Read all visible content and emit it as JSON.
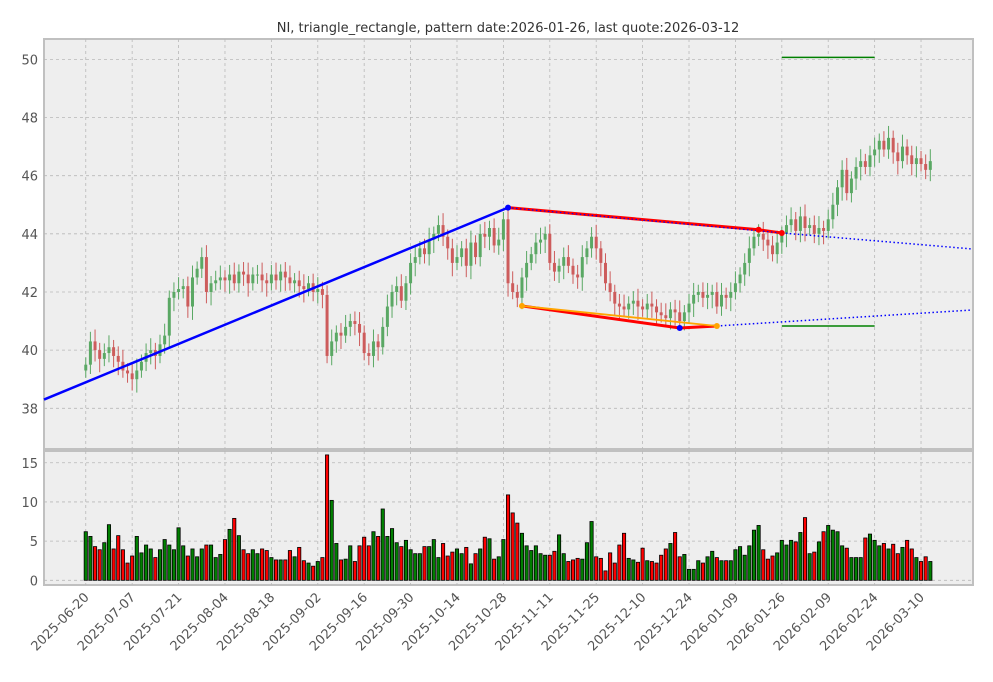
{
  "chart_data": {
    "type": "candlestick",
    "title": "NI, triangle_rectangle, pattern date:2026-01-26, last quote:2026-03-12",
    "xlabel": "",
    "ylabel": "",
    "price_ylim": [
      36.6,
      50.7
    ],
    "volume_ylim": [
      -0.6,
      16.5
    ],
    "price_yticks": [
      38,
      40,
      42,
      44,
      46,
      48,
      50
    ],
    "volume_yticks": [
      0,
      5,
      10,
      15
    ],
    "xtick_labels": [
      "2025-06-20",
      "2025-07-07",
      "2025-07-21",
      "2025-08-04",
      "2025-08-18",
      "2025-09-02",
      "2025-09-16",
      "2025-09-30",
      "2025-10-14",
      "2025-10-28",
      "2025-11-11",
      "2025-11-25",
      "2025-12-10",
      "2025-12-24",
      "2026-01-09",
      "2026-01-26",
      "2026-02-09",
      "2026-02-24",
      "2026-03-10"
    ],
    "xtick_every_bars": 10,
    "grid": true,
    "close": [
      39.5,
      40.3,
      40.0,
      39.7,
      39.9,
      40.1,
      39.8,
      39.6,
      39.3,
      39.2,
      39.0,
      39.3,
      39.6,
      39.9,
      40.0,
      39.8,
      40.2,
      40.5,
      41.8,
      42.0,
      42.1,
      42.2,
      41.5,
      42.5,
      42.8,
      43.2,
      42.0,
      42.3,
      42.4,
      42.5,
      42.4,
      42.6,
      42.3,
      42.7,
      42.6,
      42.3,
      42.6,
      42.6,
      42.4,
      42.3,
      42.6,
      42.4,
      42.7,
      42.5,
      42.3,
      42.4,
      42.2,
      42.1,
      42.3,
      42.0,
      42.1,
      41.9,
      39.8,
      40.3,
      40.6,
      40.5,
      40.8,
      41.0,
      40.9,
      40.6,
      39.9,
      39.8,
      40.3,
      40.1,
      40.8,
      41.5,
      42.0,
      42.2,
      41.7,
      42.3,
      43.0,
      43.2,
      43.5,
      43.3,
      43.8,
      44.0,
      44.3,
      43.9,
      43.5,
      43.0,
      43.2,
      43.5,
      42.9,
      43.7,
      43.2,
      44.0,
      43.9,
      44.2,
      43.6,
      43.8,
      44.5,
      42.3,
      42.0,
      41.8,
      42.5,
      43.0,
      43.3,
      43.7,
      43.8,
      44.0,
      43.0,
      42.7,
      42.9,
      43.2,
      42.9,
      42.6,
      42.5,
      43.2,
      43.5,
      43.9,
      43.5,
      43.0,
      42.3,
      42.0,
      41.6,
      41.5,
      41.4,
      41.6,
      41.7,
      41.5,
      41.4,
      41.6,
      41.5,
      41.3,
      41.2,
      41.1,
      41.4,
      41.3,
      41.0,
      41.3,
      41.6,
      41.9,
      42.0,
      41.8,
      41.9,
      42.0,
      41.5,
      41.9,
      41.8,
      42.0,
      42.3,
      42.6,
      43.0,
      43.5,
      43.9,
      44.0,
      43.8,
      43.6,
      43.3,
      43.7,
      44.0,
      44.3,
      44.5,
      44.1,
      44.6,
      44.2,
      44.3,
      44.0,
      44.2,
      44.1,
      44.5,
      45.0,
      45.6,
      46.2,
      45.4,
      45.9,
      46.3,
      46.5,
      46.3,
      46.7,
      46.9,
      47.2,
      46.9,
      47.3,
      46.8,
      46.5,
      47.0,
      46.7,
      46.4,
      46.6,
      46.4,
      46.2,
      46.5
    ],
    "volume": [
      6.2,
      5.6,
      4.3,
      3.9,
      4.8,
      7.1,
      4.0,
      5.7,
      3.9,
      2.2,
      3.1,
      5.6,
      3.5,
      4.5,
      4.0,
      2.9,
      3.9,
      5.2,
      4.5,
      3.9,
      6.7,
      4.4,
      3.1,
      4.0,
      3.0,
      4.0,
      4.5,
      4.5,
      2.9,
      3.3,
      5.2,
      6.5,
      7.9,
      5.7,
      3.9,
      3.4,
      3.9,
      3.4,
      4.0,
      3.8,
      2.9,
      2.6,
      2.6,
      2.6,
      3.8,
      3.0,
      4.2,
      2.5,
      2.2,
      1.8,
      2.4,
      2.9,
      16.0,
      10.2,
      4.7,
      2.6,
      2.7,
      4.4,
      2.4,
      4.4,
      5.5,
      4.4,
      6.2,
      5.6,
      9.1,
      5.6,
      6.6,
      4.8,
      4.3,
      5.1,
      3.9,
      3.4,
      3.4,
      4.3,
      4.3,
      5.2,
      2.9,
      4.7,
      3.1,
      3.6,
      4.0,
      3.4,
      4.2,
      2.1,
      3.4,
      4.0,
      5.5,
      5.3,
      2.7,
      3.0,
      5.2,
      10.9,
      8.6,
      7.3,
      6.0,
      4.4,
      3.8,
      4.4,
      3.4,
      3.2,
      3.2,
      3.7,
      5.8,
      3.4,
      2.4,
      2.6,
      2.8,
      2.7,
      4.8,
      7.5,
      3.0,
      2.8,
      1.2,
      3.5,
      2.2,
      4.5,
      6.0,
      2.8,
      2.6,
      2.3,
      4.1,
      2.5,
      2.4,
      2.2,
      3.2,
      4.0,
      4.7,
      6.1,
      3.0,
      3.3,
      1.4,
      1.4,
      2.5,
      2.2,
      3.0,
      3.7,
      2.9,
      2.5,
      2.5,
      2.5,
      3.9,
      4.3,
      3.2,
      4.4,
      6.4,
      7.0,
      3.9,
      2.7,
      3.1,
      3.5,
      5.1,
      4.5,
      5.1,
      4.9,
      6.1,
      8.0,
      3.4,
      3.6,
      4.9,
      6.2,
      7.0,
      6.4,
      6.2,
      4.4,
      4.1,
      2.9,
      2.9,
      2.9,
      5.4,
      5.9,
      5.1,
      4.4,
      4.7,
      4.0,
      4.6,
      3.4,
      4.2,
      5.1,
      4.0,
      2.9,
      2.4,
      3.0,
      2.4
    ],
    "overlays": [
      {
        "name": "support-trendline",
        "color": "#0000ff",
        "style": "solid",
        "points": [
          [
            -9,
            38.3
          ],
          [
            91,
            44.9
          ]
        ]
      },
      {
        "name": "upper-pattern-line",
        "color": "#ff0000",
        "style": "solid",
        "points": [
          [
            91,
            44.9
          ],
          [
            145,
            44.14
          ],
          [
            150,
            44.03
          ]
        ]
      },
      {
        "name": "upper-projection",
        "color": "#0000ff",
        "style": "dotted",
        "points": [
          [
            150,
            44.03
          ],
          [
            191,
            43.48
          ]
        ]
      },
      {
        "name": "lower-pattern-line",
        "color": "#ff0000",
        "style": "solid",
        "points": [
          [
            94,
            41.52
          ],
          [
            128,
            40.76
          ],
          [
            136,
            40.83
          ]
        ]
      },
      {
        "name": "lower-orange-line",
        "color": "#ffa500",
        "style": "solid",
        "points": [
          [
            94,
            41.52
          ],
          [
            136,
            40.83
          ]
        ]
      },
      {
        "name": "lower-projection",
        "color": "#0000ff",
        "style": "dotted",
        "points": [
          [
            136,
            40.83
          ],
          [
            191,
            41.38
          ]
        ]
      },
      {
        "name": "target-high",
        "color": "#008000",
        "style": "solid",
        "points": [
          [
            150,
            50.07
          ],
          [
            170,
            50.07
          ]
        ]
      },
      {
        "name": "target-low",
        "color": "#008000",
        "style": "solid",
        "points": [
          [
            150,
            40.83
          ],
          [
            170,
            40.83
          ]
        ]
      }
    ],
    "markers": [
      {
        "name": "pivot-top",
        "color": "#0000ff",
        "point": [
          91,
          44.9
        ]
      },
      {
        "name": "pivot-upper-2",
        "color": "#ff0000",
        "point": [
          145,
          44.14
        ]
      },
      {
        "name": "pivot-upper-3",
        "color": "#ff0000",
        "point": [
          150,
          44.03
        ]
      },
      {
        "name": "pivot-low-1",
        "color": "#ffa500",
        "point": [
          94,
          41.52
        ]
      },
      {
        "name": "pivot-low-2",
        "color": "#0000ff",
        "point": [
          128,
          40.76
        ]
      },
      {
        "name": "pivot-low-3",
        "color": "#ffa500",
        "point": [
          136,
          40.83
        ]
      }
    ],
    "x_range_bars": [
      -9,
      191.2
    ],
    "colors": {
      "up": "#5aa864",
      "down": "#cd5c5c",
      "vol_up": "#008000",
      "vol_down": "#ff0000",
      "bg": "#eeeeee"
    }
  }
}
